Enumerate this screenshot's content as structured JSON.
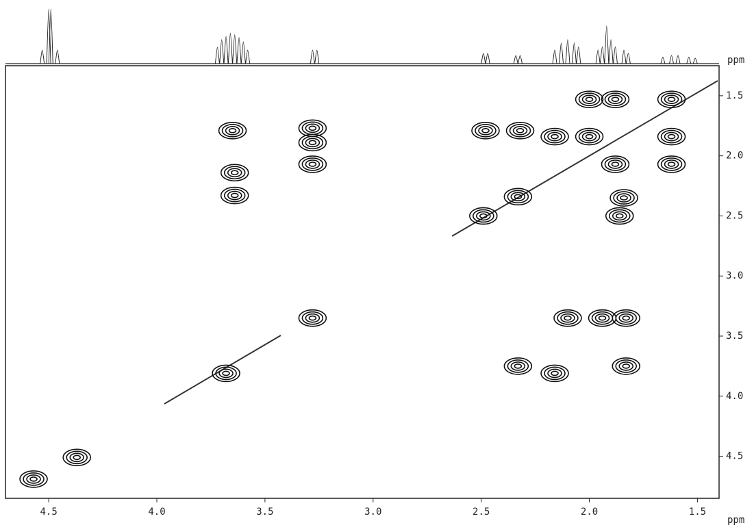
{
  "chart_data": {
    "type": "scatter",
    "x_label": "ppm",
    "y_label": "ppm",
    "xlim": [
      4.7,
      1.4
    ],
    "ylim": [
      1.25,
      4.85
    ],
    "xticks": [
      {
        "value": 4.5,
        "label": "4.5"
      },
      {
        "value": 4.0,
        "label": "4.0"
      },
      {
        "value": 3.5,
        "label": "3.5"
      },
      {
        "value": 3.0,
        "label": "3.0"
      },
      {
        "value": 2.5,
        "label": "2.5"
      },
      {
        "value": 2.0,
        "label": "2.0"
      },
      {
        "value": 1.5,
        "label": "1.5"
      }
    ],
    "yticks": [
      {
        "value": 1.5,
        "label": "1.5"
      },
      {
        "value": 2.0,
        "label": "2.0"
      },
      {
        "value": 2.5,
        "label": "2.5"
      },
      {
        "value": 3.0,
        "label": "3.0"
      },
      {
        "value": 3.5,
        "label": "3.5"
      },
      {
        "value": 4.0,
        "label": "4.0"
      },
      {
        "value": 4.5,
        "label": "4.5"
      }
    ],
    "color": "#111111",
    "series": [
      {
        "x": [
          4.57,
          4.37,
          3.65,
          3.64,
          3.64,
          3.28,
          3.28,
          3.28,
          3.28,
          3.68,
          2.48,
          2.32,
          2.16,
          2.0,
          1.88,
          1.62,
          2.0,
          1.62,
          1.88,
          1.62,
          1.84,
          1.86,
          2.49,
          2.33,
          2.1,
          1.94,
          1.83,
          2.33,
          2.16,
          1.83
        ],
        "values": [
          4.69,
          4.51,
          1.79,
          2.14,
          2.33,
          1.77,
          1.89,
          2.07,
          3.35,
          3.81,
          1.79,
          1.79,
          1.84,
          1.53,
          1.53,
          1.53,
          1.84,
          1.84,
          2.07,
          2.07,
          2.35,
          2.5,
          2.5,
          2.34,
          3.35,
          3.35,
          3.35,
          3.75,
          3.81,
          3.75
        ]
      }
    ],
    "projection": {
      "ylim": [
        0,
        100
      ],
      "x": [
        4.53,
        4.5,
        4.49,
        4.46,
        3.72,
        3.7,
        3.68,
        3.66,
        3.64,
        3.62,
        3.6,
        3.58,
        3.28,
        3.26,
        2.49,
        2.47,
        2.34,
        2.32,
        2.16,
        2.13,
        2.1,
        2.07,
        2.05,
        1.96,
        1.94,
        1.92,
        1.9,
        1.88,
        1.84,
        1.82,
        1.66,
        1.62,
        1.59,
        1.54,
        1.51
      ],
      "values": [
        25,
        100,
        100,
        25,
        30,
        44,
        50,
        56,
        53,
        48,
        40,
        25,
        25,
        25,
        19,
        19,
        15,
        15,
        25,
        38,
        44,
        38,
        31,
        25,
        31,
        69,
        44,
        31,
        25,
        19,
        12,
        15,
        15,
        12,
        10
      ]
    }
  }
}
